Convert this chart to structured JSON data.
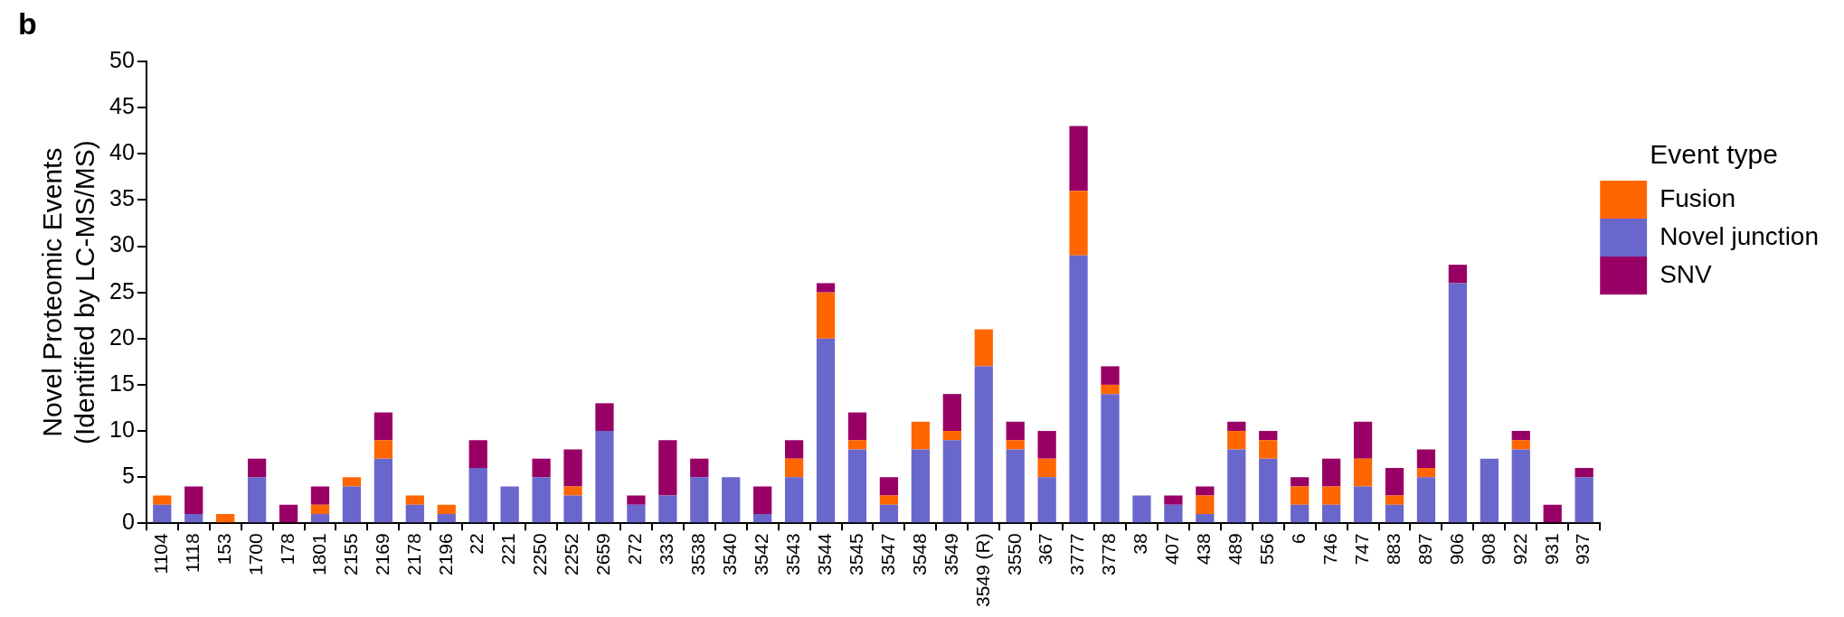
{
  "chart_data": {
    "type": "bar",
    "stacked": true,
    "ylabel": "Novel Proteomic Events\n(Identified by LC-MS/MS)",
    "legend_title": "Event type",
    "legend": "right",
    "grid": false,
    "annotations": [
      "b"
    ],
    "categories": [
      "1104",
      "1118",
      "153",
      "1700",
      "178",
      "1801",
      "2155",
      "2169",
      "2178",
      "2196",
      "22",
      "221",
      "2250",
      "2252",
      "2659",
      "272",
      "333",
      "3538",
      "3540",
      "3542",
      "3543",
      "3544",
      "3545",
      "3547",
      "3548",
      "3549",
      "3549 (R)",
      "3550",
      "367",
      "3777",
      "3778",
      "38",
      "407",
      "438",
      "489",
      "556",
      "6",
      "746",
      "747",
      "883",
      "897",
      "906",
      "908",
      "922",
      "931",
      "937"
    ],
    "ylim": [
      0,
      50
    ],
    "yticks": [
      0,
      5,
      10,
      15,
      20,
      25,
      30,
      35,
      40,
      45,
      50
    ],
    "series": [
      {
        "name": "Novel junction",
        "color": "#6a67cc",
        "values": [
          2,
          1,
          0,
          5,
          0,
          1,
          4,
          7,
          2,
          1,
          6,
          4,
          5,
          3,
          10,
          2,
          3,
          5,
          5,
          1,
          5,
          20,
          8,
          2,
          8,
          9,
          17,
          8,
          5,
          29,
          14,
          3,
          2,
          1,
          8,
          7,
          2,
          2,
          4,
          2,
          5,
          26,
          7,
          8,
          0,
          5
        ]
      },
      {
        "name": "Fusion",
        "color": "#ff6600",
        "values": [
          1,
          0,
          1,
          0,
          0,
          1,
          1,
          2,
          1,
          1,
          0,
          0,
          0,
          1,
          0,
          0,
          0,
          0,
          0,
          0,
          2,
          5,
          1,
          1,
          3,
          1,
          4,
          1,
          2,
          7,
          1,
          0,
          0,
          2,
          2,
          2,
          2,
          2,
          3,
          1,
          1,
          0,
          0,
          1,
          0,
          0
        ]
      },
      {
        "name": "SNV",
        "color": "#990066",
        "values": [
          0,
          3,
          0,
          2,
          2,
          2,
          0,
          3,
          0,
          0,
          3,
          0,
          2,
          4,
          3,
          1,
          6,
          2,
          0,
          3,
          2,
          1,
          3,
          2,
          0,
          4,
          0,
          2,
          3,
          7,
          2,
          0,
          1,
          1,
          1,
          1,
          1,
          3,
          4,
          3,
          2,
          2,
          0,
          1,
          2,
          1
        ]
      }
    ]
  }
}
